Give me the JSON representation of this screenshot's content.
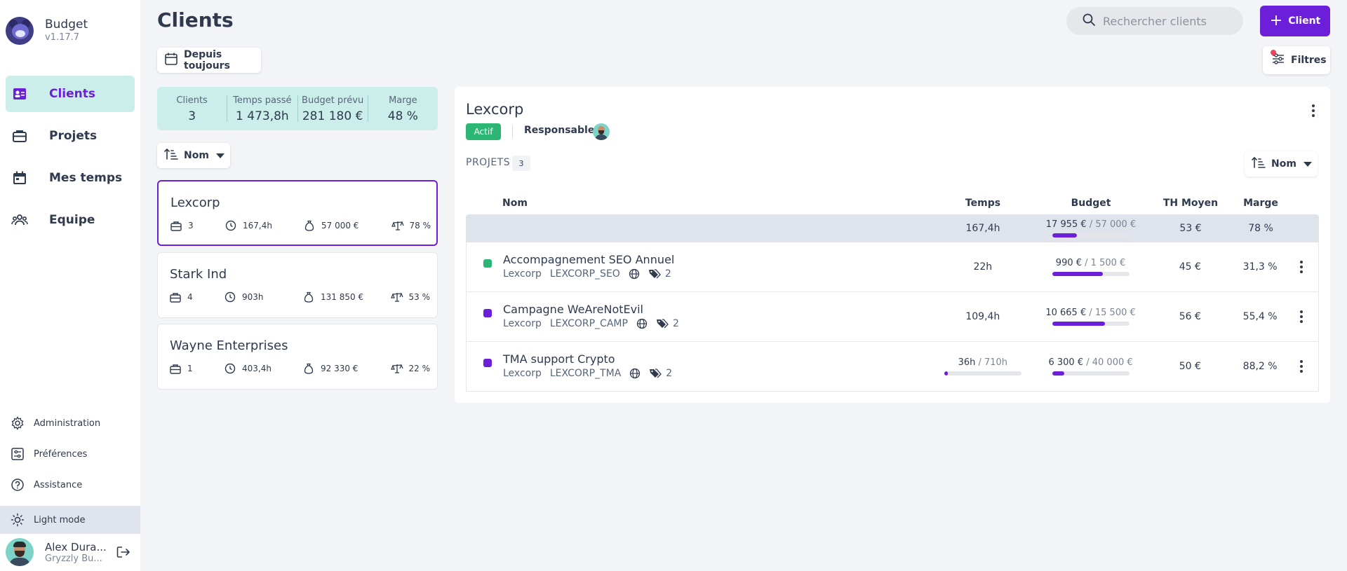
{
  "app": {
    "name": "Budget",
    "version": "v1.17.7"
  },
  "sidebar": {
    "items": [
      {
        "label": "Clients",
        "icon": "clients-icon",
        "active": true
      },
      {
        "label": "Projets",
        "icon": "briefcase-icon"
      },
      {
        "label": "Mes temps",
        "icon": "calendar-icon"
      },
      {
        "label": "Equipe",
        "icon": "team-icon"
      }
    ],
    "bottom": [
      {
        "label": "Administration",
        "icon": "gear-icon"
      },
      {
        "label": "Préférences",
        "icon": "preferences-icon"
      },
      {
        "label": "Assistance",
        "icon": "help-icon"
      }
    ],
    "theme_label": "Light mode",
    "user": {
      "name": "Alex Dura...",
      "org": "Gryzzly Bu..."
    }
  },
  "header": {
    "title": "Clients",
    "search_placeholder": "Rechercher clients",
    "add_label": "Client",
    "period_label": "Depuis toujours",
    "filters_label": "Filtres"
  },
  "stats": [
    {
      "label": "Clients",
      "value": "3"
    },
    {
      "label": "Temps passé",
      "value": "1 473,8h"
    },
    {
      "label": "Budget prévu",
      "value": "281 180 €"
    },
    {
      "label": "Marge",
      "value": "48 %"
    }
  ],
  "sort": {
    "left_label": "Nom",
    "right_label": "Nom"
  },
  "clients": [
    {
      "name": "Lexcorp",
      "projects": "3",
      "time": "167,4h",
      "budget": "57 000 €",
      "margin": "78 %"
    },
    {
      "name": "Stark Ind",
      "projects": "4",
      "time": "903h",
      "budget": "131 850 €",
      "margin": "53 %"
    },
    {
      "name": "Wayne Enterprises",
      "projects": "1",
      "time": "403,4h",
      "budget": "92 330 €",
      "margin": "22 %"
    }
  ],
  "detail": {
    "title": "Lexcorp",
    "status": "Actif",
    "responsables_label": "Responsables",
    "projets_label": "PROJETS",
    "projets_count": "3",
    "columns": {
      "nom": "Nom",
      "temps": "Temps",
      "budget": "Budget",
      "th": "TH Moyen",
      "marge": "Marge"
    },
    "summary": {
      "temps": "167,4h",
      "budget_spent": "17 955 €",
      "budget_total": "/ 57 000 €",
      "budget_progress": 0.315,
      "th": "53 €",
      "marge": "78 %"
    },
    "projects": [
      {
        "name": "Accompagnement SEO Annuel",
        "client": "Lexcorp",
        "code": "LEXCORP_SEO",
        "tags": "2",
        "dot_color": "#2bb673",
        "temps": "22h",
        "temps_total": "",
        "temps_progress": null,
        "budget_spent": "990 €",
        "budget_total": "/ 1 500 €",
        "budget_progress": 0.66,
        "th": "45 €",
        "marge": "31,3 %"
      },
      {
        "name": "Campagne WeAreNotEvil",
        "client": "Lexcorp",
        "code": "LEXCORP_CAMP",
        "tags": "2",
        "dot_color": "#6c1fd8",
        "temps": "109,4h",
        "temps_total": "",
        "temps_progress": null,
        "budget_spent": "10 665 €",
        "budget_total": "/ 15 500 €",
        "budget_progress": 0.69,
        "th": "56 €",
        "marge": "55,4 %"
      },
      {
        "name": "TMA support Crypto",
        "client": "Lexcorp",
        "code": "LEXCORP_TMA",
        "tags": "2",
        "dot_color": "#6c1fd8",
        "temps": "36h",
        "temps_total": "/ 710h",
        "temps_progress": 0.05,
        "budget_spent": "6 300 €",
        "budget_total": "/ 40 000 €",
        "budget_progress": 0.16,
        "th": "50 €",
        "marge": "88,2 %"
      }
    ]
  },
  "colors": {
    "accent": "#6c1fd8",
    "active_bg": "#cbeeea",
    "success": "#2bb673"
  }
}
